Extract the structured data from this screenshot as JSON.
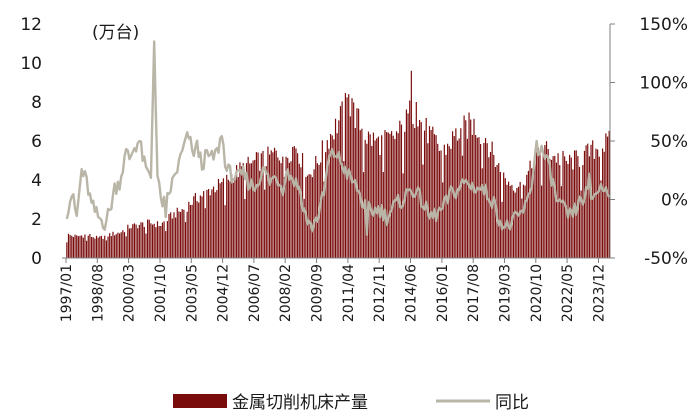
{
  "chart_data": {
    "type": "bar",
    "unit_label": "(万台)",
    "y_left": {
      "min": 0,
      "max": 12,
      "ticks": [
        "0",
        "2",
        "4",
        "6",
        "8",
        "10",
        "12"
      ]
    },
    "y_right": {
      "min": -50,
      "max": 150,
      "ticks": [
        "-50%",
        "0%",
        "50%",
        "100%",
        "150%"
      ]
    },
    "x_start": "1997-01",
    "x_end": "2024-06",
    "x_tick_labels": [
      "1997/01",
      "1998/08",
      "2000/03",
      "2001/10",
      "2003/05",
      "2004/12",
      "2006/07",
      "2008/02",
      "2009/09",
      "2011/04",
      "2012/11",
      "2014/06",
      "2016/01",
      "2017/08",
      "2019/03",
      "2020/10",
      "2022/05",
      "2023/12"
    ],
    "series": [
      {
        "name": "金属切削机床产量",
        "kind": "bar",
        "axis": "left",
        "color": "#7a0c0c",
        "anchors": [
          [
            "1997-01",
            1.2
          ],
          [
            "1997-07",
            1.1
          ],
          [
            "1998-01",
            1.2
          ],
          [
            "1998-08",
            1.0
          ],
          [
            "1999-03",
            1.2
          ],
          [
            "1999-09",
            1.3
          ],
          [
            "2000-03",
            1.6
          ],
          [
            "2000-09",
            1.7
          ],
          [
            "2001-03",
            1.8
          ],
          [
            "2001-10",
            1.7
          ],
          [
            "2002-05",
            2.2
          ],
          [
            "2002-12",
            2.5
          ],
          [
            "2003-05",
            2.9
          ],
          [
            "2003-12",
            3.3
          ],
          [
            "2004-06",
            3.6
          ],
          [
            "2004-12",
            3.8
          ],
          [
            "2005-06",
            4.3
          ],
          [
            "2005-12",
            4.6
          ],
          [
            "2006-07",
            4.9
          ],
          [
            "2007-02",
            5.1
          ],
          [
            "2007-08",
            5.4
          ],
          [
            "2008-02",
            5.3
          ],
          [
            "2008-08",
            5.8
          ],
          [
            "2009-03",
            4.2
          ],
          [
            "2009-09",
            4.9
          ],
          [
            "2010-04",
            6.2
          ],
          [
            "2010-10",
            7.0
          ],
          [
            "2011-04",
            8.0
          ],
          [
            "2011-08",
            7.3
          ],
          [
            "2012-03",
            6.2
          ],
          [
            "2012-11",
            5.9
          ],
          [
            "2013-06",
            6.1
          ],
          [
            "2014-01",
            6.6
          ],
          [
            "2014-06",
            7.6
          ],
          [
            "2014-12",
            6.9
          ],
          [
            "2015-06",
            6.2
          ],
          [
            "2016-01",
            5.4
          ],
          [
            "2016-08",
            6.2
          ],
          [
            "2017-02",
            6.7
          ],
          [
            "2017-08",
            6.8
          ],
          [
            "2018-03",
            6.2
          ],
          [
            "2018-09",
            5.0
          ],
          [
            "2019-03",
            4.0
          ],
          [
            "2019-09",
            3.7
          ],
          [
            "2020-04",
            4.2
          ],
          [
            "2020-10",
            5.1
          ],
          [
            "2021-03",
            5.6
          ],
          [
            "2021-09",
            5.2
          ],
          [
            "2022-05",
            4.9
          ],
          [
            "2022-12",
            5.1
          ],
          [
            "2023-06",
            5.4
          ],
          [
            "2023-12",
            5.7
          ],
          [
            "2024-06",
            5.9
          ]
        ],
        "spikes": [
          [
            "2011-04",
            8.4
          ],
          [
            "2011-06",
            8.2
          ],
          [
            "2014-06",
            9.6
          ],
          [
            "2014-09",
            8.0
          ],
          [
            "2017-06",
            7.1
          ]
        ]
      },
      {
        "name": "同比",
        "kind": "line",
        "axis": "right",
        "color": "#b9b6a8",
        "anchors": [
          [
            "1997-01",
            -10
          ],
          [
            "1997-04",
            5
          ],
          [
            "1997-07",
            -15
          ],
          [
            "1997-10",
            25
          ],
          [
            "1998-01",
            15
          ],
          [
            "1998-04",
            -5
          ],
          [
            "1998-08",
            -15
          ],
          [
            "1998-12",
            -20
          ],
          [
            "1999-03",
            -10
          ],
          [
            "1999-06",
            10
          ],
          [
            "1999-09",
            15
          ],
          [
            "2000-01",
            40
          ],
          [
            "2000-03",
            35
          ],
          [
            "2000-06",
            45
          ],
          [
            "2000-09",
            50
          ],
          [
            "2000-12",
            30
          ],
          [
            "2001-02",
            22
          ],
          [
            "2001-04",
            20
          ],
          [
            "2001-06",
            135
          ],
          [
            "2001-08",
            18
          ],
          [
            "2001-10",
            0
          ],
          [
            "2002-01",
            -5
          ],
          [
            "2002-04",
            10
          ],
          [
            "2002-07",
            22
          ],
          [
            "2002-10",
            35
          ],
          [
            "2002-12",
            45
          ],
          [
            "2003-03",
            55
          ],
          [
            "2003-05",
            40
          ],
          [
            "2003-08",
            45
          ],
          [
            "2003-11",
            30
          ],
          [
            "2004-02",
            38
          ],
          [
            "2004-05",
            35
          ],
          [
            "2004-08",
            40
          ],
          [
            "2004-11",
            55
          ],
          [
            "2005-02",
            25
          ],
          [
            "2005-06",
            20
          ],
          [
            "2005-09",
            18
          ],
          [
            "2005-12",
            22
          ],
          [
            "2006-03",
            15
          ],
          [
            "2006-07",
            10
          ],
          [
            "2006-10",
            20
          ],
          [
            "2007-01",
            25
          ],
          [
            "2007-04",
            15
          ],
          [
            "2007-08",
            20
          ],
          [
            "2007-12",
            10
          ],
          [
            "2008-02",
            25
          ],
          [
            "2008-06",
            18
          ],
          [
            "2008-10",
            10
          ],
          [
            "2009-01",
            -10
          ],
          [
            "2009-05",
            -25
          ],
          [
            "2009-09",
            -15
          ],
          [
            "2010-01",
            5
          ],
          [
            "2010-04",
            35
          ],
          [
            "2010-08",
            40
          ],
          [
            "2010-12",
            30
          ],
          [
            "2011-04",
            20
          ],
          [
            "2011-09",
            10
          ],
          [
            "2012-01",
            -5
          ],
          [
            "2012-06",
            -10
          ],
          [
            "2012-11",
            -8
          ],
          [
            "2013-03",
            -15
          ],
          [
            "2013-08",
            -5
          ],
          [
            "2014-01",
            0
          ],
          [
            "2014-06",
            10
          ],
          [
            "2014-12",
            0
          ],
          [
            "2015-05",
            -15
          ],
          [
            "2015-10",
            -12
          ],
          [
            "2016-01",
            -8
          ],
          [
            "2016-06",
            5
          ],
          [
            "2016-10",
            8
          ],
          [
            "2017-02",
            15
          ],
          [
            "2017-06",
            12
          ],
          [
            "2017-10",
            10
          ],
          [
            "2018-02",
            8
          ],
          [
            "2018-07",
            0
          ],
          [
            "2018-11",
            -15
          ],
          [
            "2019-03",
            -25
          ],
          [
            "2019-07",
            -20
          ],
          [
            "2019-11",
            -15
          ],
          [
            "2020-04",
            -5
          ],
          [
            "2020-07",
            15
          ],
          [
            "2020-10",
            45
          ],
          [
            "2021-02",
            40
          ],
          [
            "2021-06",
            25
          ],
          [
            "2021-10",
            0
          ],
          [
            "2022-03",
            -10
          ],
          [
            "2022-07",
            -15
          ],
          [
            "2022-11",
            -5
          ],
          [
            "2023-04",
            5
          ],
          [
            "2023-08",
            2
          ],
          [
            "2023-12",
            10
          ],
          [
            "2024-06",
            8
          ]
        ],
        "spikes": [
          [
            "2001-06",
            135
          ],
          [
            "2002-01",
            -15
          ],
          [
            "2012-03",
            -30
          ],
          [
            "2020-10",
            50
          ],
          [
            "2023-06",
            22
          ]
        ]
      }
    ],
    "legend_position": "bottom-center"
  }
}
